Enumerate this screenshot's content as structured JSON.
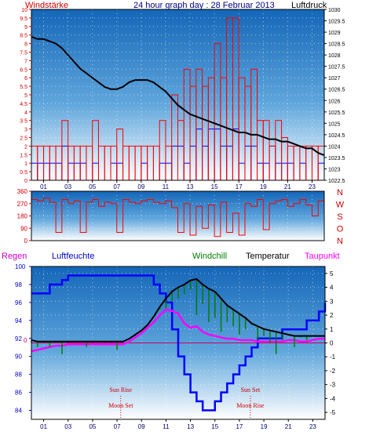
{
  "panel1": {
    "title": "24 hour graph day : 28 Februar 2013",
    "left_label": "Windstärke",
    "right_label": "Luftdruck"
  },
  "panel3": {
    "legend": [
      "Regen",
      "Luftfeuchte",
      "Windchill",
      "Temperatur",
      "Taupunkt"
    ],
    "zero_marker": "0"
  },
  "colors": {
    "wind_speed": "#ff0000",
    "wind_gust": "#0000ff",
    "pressure": "#000000",
    "humidity": "#0000ff",
    "temperature": "#000000",
    "windchill": "#008000",
    "dewpoint": "#ff00ff",
    "events": "#cc0000"
  },
  "chart_data": [
    {
      "type": "line",
      "x_range": [
        0,
        24
      ],
      "x_ticks": [
        "01",
        "03",
        "05",
        "07",
        "09",
        "11",
        "13",
        "15",
        "17",
        "19",
        "21",
        "23"
      ],
      "y_left": {
        "label": "Windstärke",
        "range": [
          0,
          10
        ],
        "ticks": [
          "0",
          "0.5",
          "1",
          "1.5",
          "2",
          "2.5",
          "3",
          "3.5",
          "4",
          "4.5",
          "5",
          "5.5",
          "6",
          "6.5",
          "7",
          "7.5",
          "8",
          "8.5",
          "9",
          "9.5",
          "10"
        ]
      },
      "y_right": {
        "label": "Luftdruck",
        "range": [
          1022.5,
          1030
        ],
        "ticks": [
          "1022.5",
          "1023",
          "1023.5",
          "1024",
          "1024.5",
          "1025",
          "1025.5",
          "1026",
          "1026.5",
          "1027",
          "1027.5",
          "1028",
          "1028.5",
          "1029",
          "1029.5",
          "1030"
        ]
      },
      "grid": true,
      "series": [
        {
          "name": "Luftdruck",
          "axis": "right",
          "x": [
            0,
            0.5,
            1,
            1.5,
            2,
            2.5,
            3,
            3.5,
            4,
            4.5,
            5,
            5.5,
            6,
            6.5,
            7,
            7.5,
            8,
            8.5,
            9,
            9.5,
            10,
            10.5,
            11,
            11.5,
            12,
            12.5,
            13,
            13.5,
            14,
            14.5,
            15,
            15.5,
            16,
            16.5,
            17,
            17.5,
            18,
            18.5,
            19,
            19.5,
            20,
            20.5,
            21,
            21.5,
            22,
            22.5,
            23,
            23.5,
            24
          ],
          "y": [
            1028.8,
            1028.7,
            1028.7,
            1028.6,
            1028.5,
            1028.3,
            1028.0,
            1027.7,
            1027.4,
            1027.2,
            1027.0,
            1026.8,
            1026.6,
            1026.5,
            1026.5,
            1026.6,
            1026.8,
            1026.9,
            1026.9,
            1026.9,
            1026.8,
            1026.6,
            1026.4,
            1026.1,
            1025.8,
            1025.6,
            1025.4,
            1025.3,
            1025.2,
            1025.1,
            1025.0,
            1024.9,
            1024.8,
            1024.7,
            1024.6,
            1024.6,
            1024.5,
            1024.5,
            1024.4,
            1024.3,
            1024.3,
            1024.2,
            1024.2,
            1024.1,
            1024.0,
            1023.9,
            1023.9,
            1023.7,
            1023.6
          ]
        },
        {
          "name": "Wind speed",
          "axis": "left",
          "style": "steps",
          "x": [
            0,
            0.5,
            1,
            1.5,
            2,
            2.5,
            3,
            3.5,
            4,
            4.5,
            5,
            5.5,
            6,
            6.5,
            7,
            7.5,
            8,
            8.5,
            9,
            9.5,
            10,
            10.5,
            11,
            11.5,
            12,
            12.5,
            13,
            13.5,
            14,
            14.5,
            15,
            15.5,
            16,
            16.5,
            17,
            17.5,
            18,
            18.5,
            19,
            19.5,
            20,
            20.5,
            21,
            21.5,
            22,
            22.5,
            23,
            23.5,
            24
          ],
          "y": [
            1,
            1,
            1,
            1,
            1,
            2,
            1,
            1,
            1,
            0,
            1,
            0,
            0,
            1,
            1,
            0,
            0,
            0,
            1,
            0,
            0,
            1,
            1,
            2,
            2,
            1,
            2,
            3,
            2,
            3,
            3,
            2,
            2,
            3,
            1,
            2,
            2,
            1,
            1,
            2,
            1,
            1,
            1,
            0,
            1,
            0,
            0,
            1,
            0
          ]
        },
        {
          "name": "Wind gust",
          "axis": "left",
          "style": "steps",
          "x": [
            0,
            0.5,
            1,
            1.5,
            2,
            2.5,
            3,
            3.5,
            4,
            4.5,
            5,
            5.5,
            6,
            6.5,
            7,
            7.5,
            8,
            8.5,
            9,
            9.5,
            10,
            10.5,
            11,
            11.5,
            12,
            12.5,
            13,
            13.5,
            14,
            14.5,
            15,
            15.5,
            16,
            16.5,
            17,
            17.5,
            18,
            18.5,
            19,
            19.5,
            20,
            20.5,
            21,
            21.5,
            22,
            22.5,
            23,
            23.5,
            24
          ],
          "y": [
            2,
            2,
            2,
            2,
            2,
            3.5,
            2,
            2,
            2,
            2,
            3.5,
            2,
            2,
            2,
            3,
            2,
            2,
            2,
            2,
            2,
            2,
            3.5,
            2,
            5,
            3.5,
            6.5,
            5.5,
            6.5,
            5.5,
            6,
            8,
            6,
            9.5,
            9.5,
            6,
            5.5,
            6.5,
            3.5,
            3.5,
            2,
            3.5,
            2.5,
            2,
            2,
            2,
            2,
            2,
            2,
            0
          ]
        }
      ]
    },
    {
      "type": "line",
      "x_range": [
        0,
        24
      ],
      "y_left": {
        "range": [
          0,
          360
        ],
        "ticks": [
          "0",
          "90",
          "180",
          "270",
          "360"
        ]
      },
      "compass_labels": [
        "N",
        "W",
        "S",
        "O",
        "N"
      ],
      "grid": true,
      "series": [
        {
          "name": "Wind direction",
          "x": [
            0,
            0.5,
            1,
            1.5,
            2,
            2.5,
            3,
            3.5,
            4,
            4.5,
            5,
            5.5,
            6,
            6.5,
            7,
            7.5,
            8,
            8.5,
            9,
            9.5,
            10,
            10.5,
            11,
            11.5,
            12,
            12.5,
            13,
            13.5,
            14,
            14.5,
            15,
            15.5,
            16,
            16.5,
            17,
            17.5,
            18,
            18.5,
            19,
            19.5,
            20,
            20.5,
            21,
            21.5,
            22,
            22.5,
            23,
            23.5,
            24
          ],
          "y": [
            300,
            290,
            310,
            280,
            60,
            300,
            270,
            290,
            60,
            280,
            300,
            250,
            280,
            270,
            60,
            300,
            280,
            270,
            290,
            300,
            280,
            270,
            290,
            240,
            60,
            270,
            40,
            250,
            90,
            260,
            30,
            280,
            60,
            200,
            40,
            270,
            250,
            300,
            80,
            270,
            290,
            300,
            250,
            270,
            300,
            260,
            180,
            290,
            20
          ]
        }
      ]
    },
    {
      "type": "line",
      "x_range": [
        0,
        24
      ],
      "x_ticks": [
        "01",
        "03",
        "05",
        "07",
        "09",
        "11",
        "13",
        "15",
        "17",
        "19",
        "21",
        "23"
      ],
      "y_left": {
        "range": [
          83,
          100
        ],
        "ticks": [
          "84",
          "86",
          "88",
          "90",
          "92",
          "94",
          "96",
          "98",
          "100"
        ]
      },
      "y_right": {
        "range": [
          -5.5,
          5.5
        ],
        "ticks": [
          "-5",
          "-4",
          "-3",
          "-2",
          "-1",
          "0",
          "1",
          "2",
          "3",
          "4",
          "5"
        ]
      },
      "grid": true,
      "series": [
        {
          "name": "Luftfeuchte",
          "axis": "left",
          "x": [
            0,
            0.5,
            1,
            1.5,
            2,
            2.5,
            3,
            3.5,
            4,
            4.5,
            5,
            5.5,
            6,
            6.5,
            7,
            7.5,
            8,
            8.5,
            9,
            9.5,
            10,
            10.5,
            11,
            11.5,
            12,
            12.5,
            13,
            13.5,
            14,
            14.5,
            15,
            15.5,
            16,
            16.5,
            17,
            17.5,
            18,
            18.5,
            19,
            19.5,
            20,
            20.5,
            21,
            21.5,
            22,
            22.5,
            23,
            23.5,
            24
          ],
          "y": [
            97,
            97,
            97,
            98,
            98,
            98.5,
            99,
            99,
            99,
            99,
            99,
            99,
            99,
            99,
            99,
            99,
            99,
            99,
            99,
            99,
            98,
            97,
            96,
            93,
            90,
            88,
            86,
            85,
            84,
            84,
            85,
            86,
            87,
            88,
            89,
            90,
            91,
            92,
            92,
            92,
            92,
            93,
            93,
            93,
            93,
            94,
            94,
            95,
            96
          ]
        },
        {
          "name": "Temperatur",
          "axis": "right",
          "x": [
            0,
            0.5,
            1,
            1.5,
            2,
            2.5,
            3,
            3.5,
            4,
            4.5,
            5,
            5.5,
            6,
            6.5,
            7,
            7.5,
            8,
            8.5,
            9,
            9.5,
            10,
            10.5,
            11,
            11.5,
            12,
            12.5,
            13,
            13.5,
            14,
            14.5,
            15,
            15.5,
            16,
            16.5,
            17,
            17.5,
            18,
            18.5,
            19,
            19.5,
            20,
            20.5,
            21,
            21.5,
            22,
            22.5,
            23,
            23.5,
            24
          ],
          "y": [
            0.2,
            0.1,
            0.1,
            0.1,
            0.1,
            0.1,
            0.1,
            0.1,
            0.1,
            0.1,
            0.1,
            0.1,
            0.1,
            0.1,
            0.1,
            0.1,
            0.3,
            0.6,
            0.9,
            1.3,
            1.9,
            2.6,
            3.2,
            3.7,
            4.0,
            4.2,
            4.5,
            4.6,
            4.2,
            3.9,
            3.7,
            3.2,
            2.7,
            2.4,
            2.1,
            1.8,
            1.4,
            1.2,
            1.0,
            0.9,
            0.8,
            0.7,
            0.6,
            0.5,
            0.5,
            0.5,
            0.5,
            0.5,
            0.5
          ]
        },
        {
          "name": "Windchill",
          "axis": "right",
          "x": [
            0,
            0.5,
            1,
            1.5,
            2,
            2.5,
            3,
            3.5,
            4,
            4.5,
            5,
            5.5,
            6,
            6.5,
            7,
            7.5,
            8,
            8.5,
            9,
            9.5,
            10,
            10.5,
            11,
            11.5,
            12,
            12.5,
            13,
            13.5,
            14,
            14.5,
            15,
            15.5,
            16,
            16.5,
            17,
            17.5,
            18,
            18.5,
            19,
            19.5,
            20,
            20.5,
            21,
            21.5,
            22,
            22.5,
            23,
            23.5,
            24
          ],
          "y": [
            0,
            -0.3,
            0,
            -0.3,
            0,
            -0.8,
            0,
            0,
            0,
            -0.3,
            0,
            0,
            0,
            0,
            -0.5,
            0,
            0.3,
            0.5,
            0.9,
            1.3,
            1.9,
            2.4,
            2.5,
            3.0,
            3.2,
            3.5,
            3.8,
            2.0,
            2.8,
            1.5,
            1.8,
            0.8,
            1.5,
            1.2,
            0.6,
            1.0,
            1.3,
            0.2,
            0.5,
            0.0,
            -0.8,
            0.2,
            0.5,
            -0.3,
            0.4,
            0.2,
            0.5,
            0.5,
            0.5
          ]
        },
        {
          "name": "Taupunkt",
          "axis": "right",
          "x": [
            0,
            0.5,
            1,
            1.5,
            2,
            2.5,
            3,
            3.5,
            4,
            4.5,
            5,
            5.5,
            6,
            6.5,
            7,
            7.5,
            8,
            8.5,
            9,
            9.5,
            10,
            10.5,
            11,
            11.5,
            12,
            12.5,
            13,
            13.5,
            14,
            14.5,
            15,
            15.5,
            16,
            16.5,
            17,
            17.5,
            18,
            18.5,
            19,
            19.5,
            20,
            20.5,
            21,
            21.5,
            22,
            22.5,
            23,
            23.5,
            24
          ],
          "y": [
            -0.6,
            -0.5,
            -0.4,
            -0.3,
            -0.2,
            -0.2,
            -0.1,
            -0.1,
            -0.1,
            -0.1,
            -0.1,
            -0.1,
            -0.1,
            -0.1,
            -0.1,
            -0.1,
            0.1,
            0.4,
            0.7,
            1.1,
            1.5,
            2.0,
            2.4,
            2.3,
            2.1,
            1.4,
            1.1,
            1.2,
            0.8,
            0.6,
            0.5,
            0.4,
            0.3,
            0.3,
            0.2,
            0.2,
            0.2,
            0.1,
            0.1,
            0.1,
            0.1,
            0.1,
            0.2,
            0.2,
            0.1,
            0.1,
            0.2,
            0.3,
            0.3
          ]
        }
      ],
      "events": [
        {
          "label": "Sun Rise",
          "x": 7.3,
          "row": "upper"
        },
        {
          "label": "Moon Set",
          "x": 7.3,
          "row": "lower"
        },
        {
          "label": "Sun Set",
          "x": 17.9,
          "row": "upper"
        },
        {
          "label": "Moon Rise",
          "x": 17.9,
          "row": "lower"
        }
      ]
    }
  ]
}
